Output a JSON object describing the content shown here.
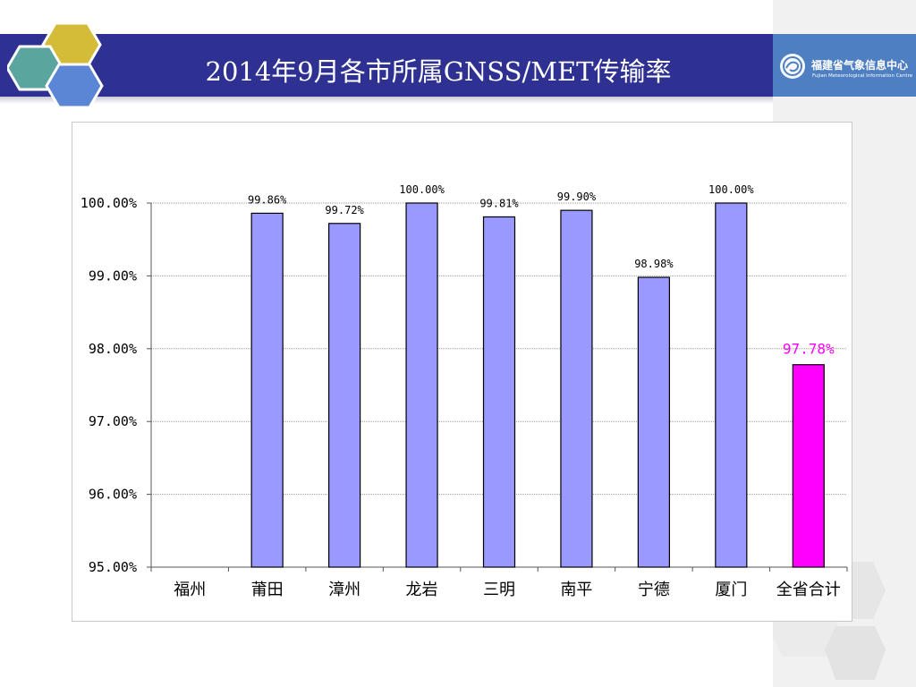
{
  "slide": {
    "title": "2014年9月各市所属GNSS/MET传输率",
    "logo_text": "福建省气象信息中心",
    "logo_subtext": "Fujian Meteorological Information Centre"
  },
  "colors": {
    "header": "#2e3192",
    "bar": "#9999ff",
    "bar_total": "#ff00ff",
    "total_label": "#ff00ff",
    "hex_gold": "#d4bb38",
    "hex_teal": "#5ba59f",
    "hex_blue": "#5b86d6"
  },
  "chart_data": {
    "type": "bar",
    "categories": [
      "福州",
      "莆田",
      "漳州",
      "龙岩",
      "三明",
      "南平",
      "宁德",
      "厦门",
      "全省合计"
    ],
    "values": [
      95.0,
      99.86,
      99.72,
      100.0,
      99.81,
      99.9,
      98.98,
      100.0,
      97.78
    ],
    "data_labels": [
      "",
      "99.86%",
      "99.72%",
      "100.00%",
      "99.81%",
      "99.90%",
      "98.98%",
      "100.00%",
      "97.78%"
    ],
    "highlight_index": 8,
    "ylim": [
      95.0,
      100.0
    ],
    "yticks": [
      95.0,
      96.0,
      97.0,
      98.0,
      99.0,
      100.0
    ],
    "ytick_labels": [
      "95.00%",
      "96.00%",
      "97.00%",
      "98.00%",
      "99.00%",
      "100.00%"
    ],
    "grid": true,
    "title": "",
    "xlabel": "",
    "ylabel": ""
  }
}
